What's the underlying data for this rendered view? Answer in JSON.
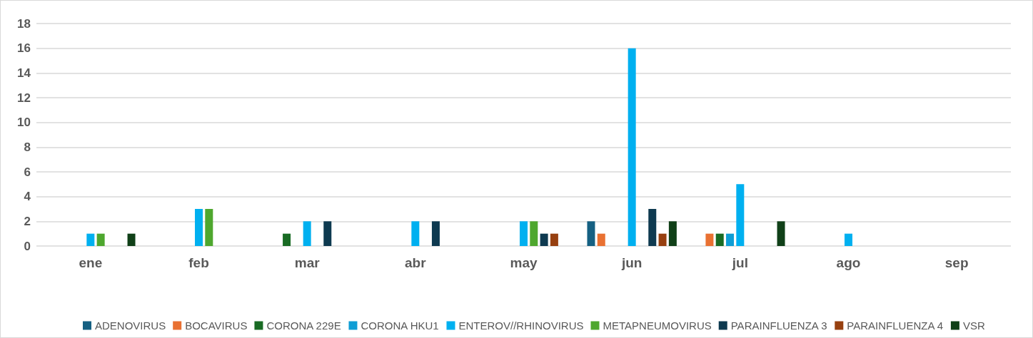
{
  "chart_data": {
    "type": "bar",
    "categories": [
      "ene",
      "feb",
      "mar",
      "abr",
      "may",
      "jun",
      "jul",
      "ago",
      "sep"
    ],
    "series": [
      {
        "name": "ADENOVIRUS",
        "color": "#156082",
        "values": [
          0,
          0,
          0,
          0,
          0,
          2,
          0,
          0,
          0
        ]
      },
      {
        "name": "BOCAVIRUS",
        "color": "#e97132",
        "values": [
          0,
          0,
          0,
          0,
          0,
          1,
          1,
          0,
          0
        ]
      },
      {
        "name": "CORONA 229E",
        "color": "#196b24",
        "values": [
          0,
          0,
          1,
          0,
          0,
          0,
          1,
          0,
          0
        ]
      },
      {
        "name": "CORONA HKU1",
        "color": "#0f9ed5",
        "values": [
          0,
          0,
          0,
          0,
          0,
          0,
          1,
          0,
          0
        ]
      },
      {
        "name": "ENTEROV//RHINOVIRUS",
        "color": "#00b0f0",
        "values": [
          1,
          3,
          2,
          2,
          2,
          16,
          5,
          1,
          0
        ]
      },
      {
        "name": "METAPNEUMOVIRUS",
        "color": "#4ea72e",
        "values": [
          1,
          3,
          0,
          0,
          2,
          0,
          0,
          0,
          0
        ]
      },
      {
        "name": "PARAINFLUENZA 3",
        "color": "#0e3a50",
        "values": [
          0,
          0,
          2,
          2,
          1,
          3,
          0,
          0,
          0
        ]
      },
      {
        "name": "PARAINFLUENZA 4",
        "color": "#974010",
        "values": [
          0,
          0,
          0,
          0,
          1,
          1,
          0,
          0,
          0
        ]
      },
      {
        "name": "VSR",
        "color": "#104018",
        "values": [
          1,
          0,
          0,
          0,
          0,
          2,
          2,
          0,
          0
        ]
      }
    ],
    "ylim": [
      0,
      18
    ],
    "yticks": [
      0,
      2,
      4,
      6,
      8,
      10,
      12,
      14,
      16,
      18
    ],
    "grid": "y",
    "legend": "bottom"
  }
}
